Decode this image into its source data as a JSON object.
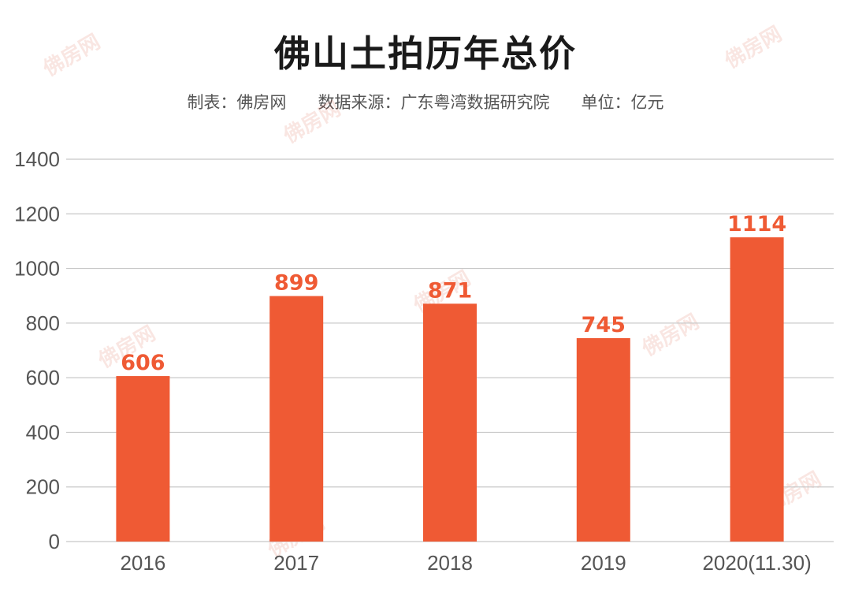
{
  "colors": {
    "bar": "#ef5a34",
    "data_label": "#ef5a34",
    "grid": "#c8c8c8",
    "axis_text": "#555555",
    "title": "#1a1a1a"
  },
  "watermark_text": "佛房网",
  "chart_data": {
    "type": "bar",
    "title": "佛山土拍历年总价",
    "subtitle": "制表：佛房网      数据来源：广东粤湾数据研究院      单位：亿元",
    "categories": [
      "2016",
      "2017",
      "2018",
      "2019",
      "2020(11.30)"
    ],
    "values": [
      606,
      899,
      871,
      745,
      1114
    ],
    "ylim": [
      0,
      1400
    ],
    "yticks": [
      0,
      200,
      400,
      600,
      800,
      1000,
      1200,
      1400
    ],
    "grid": true,
    "legend": "none"
  }
}
